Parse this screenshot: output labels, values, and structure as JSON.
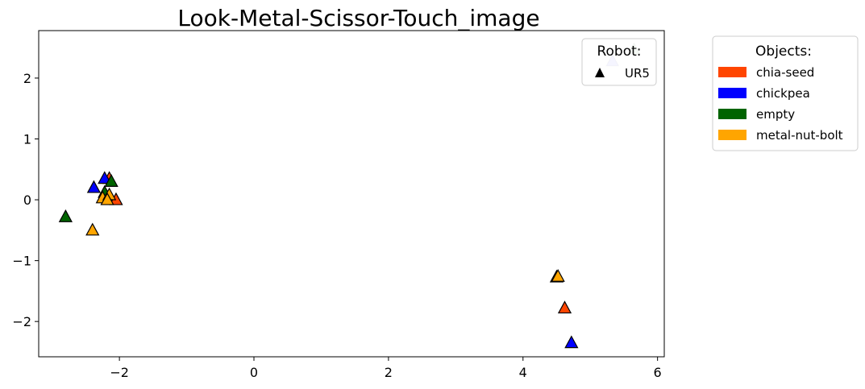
{
  "chart_data": {
    "type": "scatter",
    "title": "Look-Metal-Scissor-Touch_image",
    "xlabel": "",
    "ylabel": "",
    "xlim": [
      -3.2,
      6.1
    ],
    "ylim": [
      -2.58,
      2.78
    ],
    "x_ticks": [
      -2,
      0,
      2,
      4,
      6
    ],
    "x_tick_labels": [
      "−2",
      "0",
      "2",
      "4",
      "6"
    ],
    "y_ticks": [
      -2,
      -1,
      0,
      1,
      2
    ],
    "y_tick_labels": [
      "−2",
      "−1",
      "0",
      "1",
      "2"
    ],
    "grid": false,
    "marker": "triangle",
    "series": [
      {
        "name": "chia-seed",
        "color": "#ff4500",
        "points": [
          [
            -2.15,
            0.35
          ],
          [
            -2.05,
            0.0
          ],
          [
            4.62,
            -1.78
          ]
        ]
      },
      {
        "name": "chickpea",
        "color": "#0000ff",
        "points": [
          [
            -2.38,
            0.2
          ],
          [
            -2.22,
            0.35
          ],
          [
            4.72,
            -2.35
          ]
        ]
      },
      {
        "name": "empty",
        "color": "#006400",
        "points": [
          [
            -2.8,
            -0.28
          ],
          [
            -2.12,
            0.3
          ],
          [
            -2.22,
            0.12
          ]
        ]
      },
      {
        "name": "metal-nut-bolt",
        "color": "#ffa500",
        "points": [
          [
            -2.4,
            -0.5
          ],
          [
            -2.25,
            0.03
          ],
          [
            -2.15,
            0.08
          ],
          [
            -2.18,
            0.0
          ],
          [
            4.5,
            -1.27
          ],
          [
            4.52,
            -1.26
          ]
        ]
      }
    ],
    "faded_points": [
      {
        "series": "chickpea",
        "point": [
          5.33,
          2.28
        ]
      },
      {
        "series": "empty",
        "point": [
          5.65,
          2.47
        ]
      }
    ],
    "legends": {
      "robot": {
        "title": "Robot:",
        "entries": [
          {
            "label": "UR5",
            "marker": "triangle",
            "color": "#000000"
          }
        ],
        "placement": "upper-right (inside axes)"
      },
      "objects": {
        "title": "Objects:",
        "entries": [
          "chia-seed",
          "chickpea",
          "empty",
          "metal-nut-bolt"
        ],
        "placement": "outside right"
      }
    }
  }
}
